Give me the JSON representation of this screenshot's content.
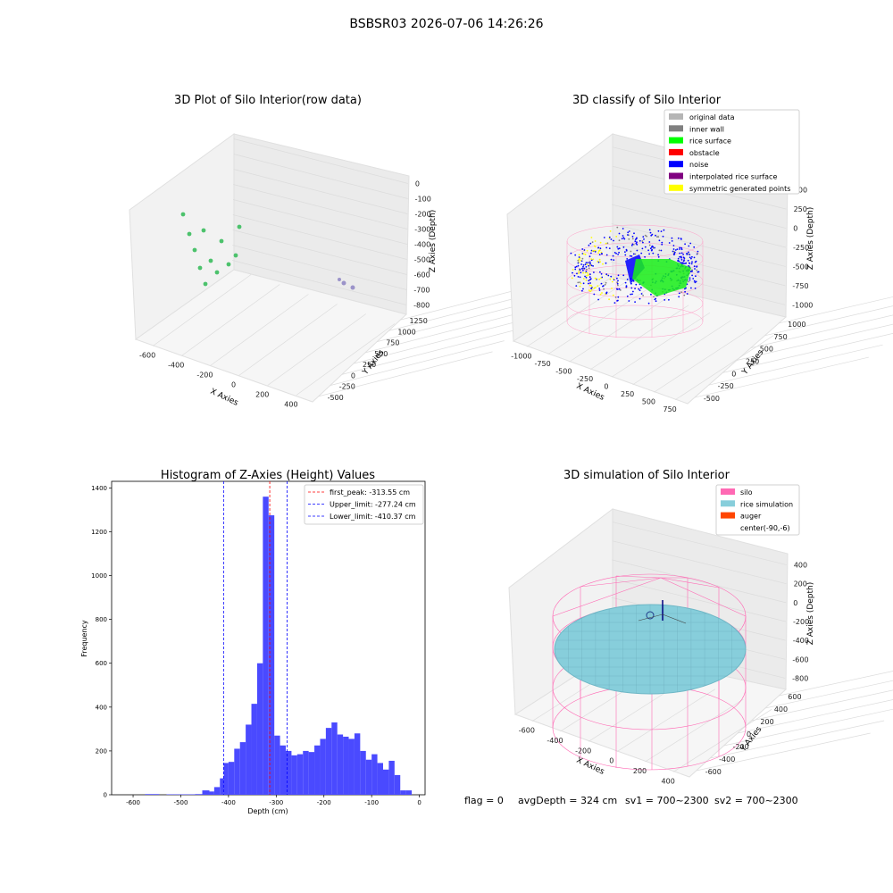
{
  "figure": {
    "suptitle": "BSBSR03 2026-07-06 14:26:26",
    "footer": {
      "flag": "flag = 0",
      "avg_depth": "avgDepth = 324 cm",
      "sv1": "sv1 = 700~2300",
      "sv2": "sv2 = 700~2300"
    }
  },
  "chart_data": [
    {
      "type": "scatter",
      "projection": "3d",
      "title": "3D Plot of Silo Interior(row data)",
      "xlabel": "X Axies",
      "ylabel": "Y Axies",
      "zlabel": "Z Axies (Depth)",
      "x_ticks": [
        "-600",
        "-400",
        "-200",
        "0",
        "200",
        "400"
      ],
      "y_ticks": [
        "-500",
        "-250",
        "0",
        "250",
        "500",
        "750",
        "1000",
        "1250"
      ],
      "z_ticks": [
        "0",
        "-100",
        "-200",
        "-300",
        "-400",
        "-500",
        "-600",
        "-700",
        "-800"
      ],
      "colormap": "viridis",
      "series": [
        {
          "values": "ring-shaped point cloud of the silo interior wall, depth approximately -200 to -800 cm"
        }
      ]
    },
    {
      "type": "scatter",
      "projection": "3d",
      "title": "3D classify of Silo Interior",
      "xlabel": "X Axies",
      "ylabel": "Y Axies",
      "zlabel": "Z Axies (Depth)",
      "x_ticks": [
        "-1000",
        "-750",
        "-500",
        "-250",
        "0",
        "250",
        "500",
        "750"
      ],
      "y_ticks": [
        "-500",
        "-250",
        "0",
        "250",
        "500",
        "750",
        "1000"
      ],
      "z_ticks": [
        "500",
        "250",
        "0",
        "-250",
        "-500",
        "-750",
        "-1000"
      ],
      "legend_position": "top-right",
      "series": [
        {
          "name": "original data",
          "color": "#b5b5b5"
        },
        {
          "name": "inner wall",
          "color": "#808080"
        },
        {
          "name": "rice surface",
          "color": "#00ff00"
        },
        {
          "name": "obstacle",
          "color": "#ff0000"
        },
        {
          "name": "noise",
          "color": "#0000ff"
        },
        {
          "name": "interpolated rice surface",
          "color": "#800080"
        },
        {
          "name": "symmetric generated points",
          "color": "#ffff00"
        }
      ]
    },
    {
      "type": "bar",
      "title": "Histogram of Z-Axies (Height) Values",
      "xlabel": "Depth (cm)",
      "ylabel": "Frequency",
      "xlim": [
        -645,
        12
      ],
      "ylim": [
        0,
        1430
      ],
      "x_ticks": [
        -600,
        -500,
        -400,
        -300,
        -200,
        -100,
        0
      ],
      "y_ticks": [
        0,
        200,
        400,
        600,
        800,
        1000,
        1200,
        1400
      ],
      "bar_color": "#4a4aff",
      "bins": [
        {
          "x0": -575,
          "x1": -560,
          "value": 3
        },
        {
          "x0": -560,
          "x1": -545,
          "value": 3
        },
        {
          "x0": -530,
          "x1": -515,
          "value": 2
        },
        {
          "x0": -515,
          "x1": -500,
          "value": 2
        },
        {
          "x0": -500,
          "x1": -485,
          "value": 2
        },
        {
          "x0": -485,
          "x1": -470,
          "value": 2
        },
        {
          "x0": -470,
          "x1": -455,
          "value": 3
        },
        {
          "x0": -455,
          "x1": -440,
          "value": 20
        },
        {
          "x0": -440,
          "x1": -430,
          "value": 15
        },
        {
          "x0": -430,
          "x1": -418,
          "value": 35
        },
        {
          "x0": -418,
          "x1": -410,
          "value": 75
        },
        {
          "x0": -410,
          "x1": -400,
          "value": 145
        },
        {
          "x0": -400,
          "x1": -388,
          "value": 150
        },
        {
          "x0": -388,
          "x1": -376,
          "value": 210
        },
        {
          "x0": -376,
          "x1": -364,
          "value": 240
        },
        {
          "x0": -364,
          "x1": -352,
          "value": 320
        },
        {
          "x0": -352,
          "x1": -340,
          "value": 415
        },
        {
          "x0": -340,
          "x1": -328,
          "value": 600
        },
        {
          "x0": -328,
          "x1": -316,
          "value": 1360
        },
        {
          "x0": -316,
          "x1": -304,
          "value": 1275
        },
        {
          "x0": -304,
          "x1": -292,
          "value": 270
        },
        {
          "x0": -292,
          "x1": -280,
          "value": 225
        },
        {
          "x0": -280,
          "x1": -268,
          "value": 200
        },
        {
          "x0": -268,
          "x1": -256,
          "value": 180
        },
        {
          "x0": -256,
          "x1": -244,
          "value": 185
        },
        {
          "x0": -244,
          "x1": -232,
          "value": 200
        },
        {
          "x0": -232,
          "x1": -220,
          "value": 195
        },
        {
          "x0": -220,
          "x1": -208,
          "value": 225
        },
        {
          "x0": -208,
          "x1": -196,
          "value": 255
        },
        {
          "x0": -196,
          "x1": -184,
          "value": 305
        },
        {
          "x0": -184,
          "x1": -172,
          "value": 330
        },
        {
          "x0": -172,
          "x1": -160,
          "value": 275
        },
        {
          "x0": -160,
          "x1": -148,
          "value": 265
        },
        {
          "x0": -148,
          "x1": -136,
          "value": 255
        },
        {
          "x0": -136,
          "x1": -124,
          "value": 280
        },
        {
          "x0": -124,
          "x1": -112,
          "value": 200
        },
        {
          "x0": -112,
          "x1": -100,
          "value": 160
        },
        {
          "x0": -100,
          "x1": -88,
          "value": 185
        },
        {
          "x0": -88,
          "x1": -76,
          "value": 145
        },
        {
          "x0": -76,
          "x1": -64,
          "value": 115
        },
        {
          "x0": -64,
          "x1": -52,
          "value": 155
        },
        {
          "x0": -52,
          "x1": -40,
          "value": 90
        },
        {
          "x0": -40,
          "x1": -28,
          "value": 20
        },
        {
          "x0": -28,
          "x1": -16,
          "value": 20
        }
      ],
      "vlines": [
        {
          "label": "first_peak: -313.55 cm",
          "x": -313.55,
          "color": "#ff0000"
        },
        {
          "label": "Upper_limit: -277.24 cm",
          "x": -277.24,
          "color": "#0000ff"
        },
        {
          "label": "Lower_limit: -410.37 cm",
          "x": -410.37,
          "color": "#0000ff"
        }
      ],
      "legend_position": "top-right"
    },
    {
      "type": "surface",
      "projection": "3d",
      "title": "3D simulation of Silo Interior",
      "xlabel": "X Axies",
      "ylabel": "Y Axies",
      "zlabel": "Z Axies (Depth)",
      "x_ticks": [
        "-600",
        "-400",
        "-200",
        "0",
        "200",
        "400"
      ],
      "y_ticks": [
        "-600",
        "-400",
        "-200",
        "0",
        "200",
        "400",
        "600"
      ],
      "z_ticks": [
        "400",
        "200",
        "0",
        "-200",
        "-400",
        "-600",
        "-800"
      ],
      "legend_position": "top-right",
      "series": [
        {
          "name": "silo",
          "color": "#ff69b4"
        },
        {
          "name": "rice simulation",
          "color": "#87cedb"
        },
        {
          "name": "auger",
          "color": "#ff4500"
        },
        {
          "name": "center(-90,-6)",
          "color": "none"
        }
      ]
    }
  ]
}
